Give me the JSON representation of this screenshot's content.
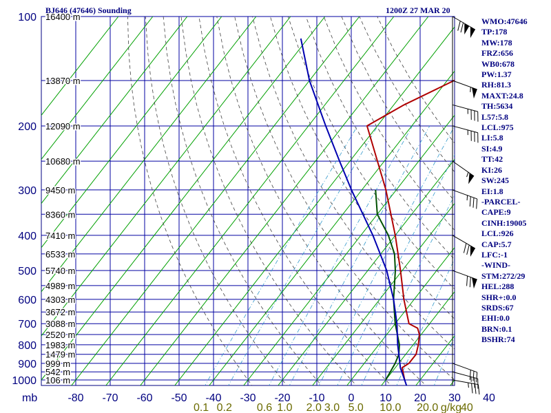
{
  "header": {
    "station": "BJ646 (47646) Sounding",
    "time": "1200Z 27 MAR 20"
  },
  "indices": [
    "WMO:47646",
    "TP:178",
    "MW:178",
    "FRZ:656",
    "WB0:678",
    "PW:1.37",
    "RH:81.3",
    "MAXT:24.8",
    "TH:5634",
    "L57:5.8",
    "LCL:975",
    "LI:5.8",
    "SI:4.9",
    "TT:42",
    "KI:26",
    "SW:245",
    "EI:1.8",
    "-PARCEL-",
    "CAPE:9",
    "CINH:19005",
    "LCL:926",
    "CAP:5.7",
    "LFC:-1",
    "-WIND-",
    "STM:272/29",
    "HEL:288",
    "SHR+:0.0",
    "SRDS:67",
    "EHI:0.0",
    "BRN:0.1",
    "BSHR:74"
  ],
  "colors": {
    "frame": "#000080",
    "grid": "#0000a0",
    "isotherm": "#00a000",
    "dry_adiabat": "#404040",
    "mixing_ratio": "#3399cc",
    "temperature": "#b00000",
    "dewpoint": "#005000",
    "parcel": "#0000b0",
    "mixing_label": "#6b6b00",
    "axis_text": "#000080"
  },
  "chart_data": {
    "type": "line",
    "title": "BJ646 (47646) Sounding",
    "xlabel": "",
    "ylabel": "mb",
    "x_ticks": [
      -80,
      -70,
      -60,
      -50,
      -40,
      -30,
      -20,
      -10,
      0,
      10,
      20,
      30,
      40
    ],
    "x_tick_labels": [
      "-80",
      "-70",
      "-60",
      "-50",
      "-40",
      "-30",
      "-20",
      "-10",
      "0",
      "10",
      "20",
      "30",
      "40"
    ],
    "pressure_ticks": [
      100,
      200,
      300,
      400,
      500,
      600,
      700,
      800,
      900,
      1000
    ],
    "mb_label": "mb",
    "height_labels": [
      {
        "p": 100,
        "text": "16400 m"
      },
      {
        "p": 150,
        "text": "13870 m"
      },
      {
        "p": 200,
        "text": "12090 m"
      },
      {
        "p": 250,
        "text": "10680 m"
      },
      {
        "p": 300,
        "text": "9450 m"
      },
      {
        "p": 350,
        "text": "8360 m"
      },
      {
        "p": 400,
        "text": "7410 m"
      },
      {
        "p": 450,
        "text": "6533 m"
      },
      {
        "p": 500,
        "text": "5740 m"
      },
      {
        "p": 550,
        "text": "4989 m"
      },
      {
        "p": 600,
        "text": "4303 m"
      },
      {
        "p": 650,
        "text": "3672 m"
      },
      {
        "p": 700,
        "text": "3088 m"
      },
      {
        "p": 750,
        "text": "2520 m"
      },
      {
        "p": 800,
        "text": "1983 m"
      },
      {
        "p": 850,
        "text": "1479 m"
      },
      {
        "p": 900,
        "text": "999 m"
      },
      {
        "p": 950,
        "text": "542 m"
      },
      {
        "p": 1000,
        "text": "106 m"
      }
    ],
    "mixing_ratio_labels": [
      {
        "w": 0.1,
        "text": "0.1"
      },
      {
        "w": 0.2,
        "text": "0.2"
      },
      {
        "w": 0.6,
        "text": "0.6"
      },
      {
        "w": 1.0,
        "text": "1.0"
      },
      {
        "w": 2.0,
        "text": "2.0"
      },
      {
        "w": 3.0,
        "text": "3.0"
      },
      {
        "w": 5.0,
        "text": "5.0"
      },
      {
        "w": 10.0,
        "text": "10.0"
      },
      {
        "w": 20.0,
        "text": "20.0"
      },
      {
        "w": 40.0,
        "text": "40"
      }
    ],
    "mixing_ratio_unit": "g/kg",
    "series": [
      {
        "type": "temperature",
        "points": [
          {
            "p": 1000,
            "t": 15.5
          },
          {
            "p": 925,
            "t": 12
          },
          {
            "p": 900,
            "t": 13
          },
          {
            "p": 850,
            "t": 13
          },
          {
            "p": 800,
            "t": 11.5
          },
          {
            "p": 750,
            "t": 9.5
          },
          {
            "p": 720,
            "t": 7.5
          },
          {
            "p": 700,
            "t": 4
          },
          {
            "p": 600,
            "t": -3
          },
          {
            "p": 500,
            "t": -10.5
          },
          {
            "p": 400,
            "t": -20
          },
          {
            "p": 300,
            "t": -33
          },
          {
            "p": 250,
            "t": -42
          },
          {
            "p": 200,
            "t": -53
          },
          {
            "p": 175,
            "t": -47
          },
          {
            "p": 150,
            "t": -38
          },
          {
            "p": 130,
            "t": -32
          },
          {
            "p": 100,
            "t": -47
          }
        ]
      },
      {
        "type": "dewpoint",
        "points": [
          {
            "p": 1000,
            "t": 10
          },
          {
            "p": 900,
            "t": 9
          },
          {
            "p": 850,
            "t": 8
          },
          {
            "p": 800,
            "t": 6
          },
          {
            "p": 700,
            "t": 0
          },
          {
            "p": 600,
            "t": -6
          },
          {
            "p": 500,
            "t": -12
          },
          {
            "p": 450,
            "t": -16
          },
          {
            "p": 400,
            "t": -22
          },
          {
            "p": 350,
            "t": -30
          },
          {
            "p": 300,
            "t": -36
          }
        ]
      },
      {
        "type": "parcel",
        "points": [
          {
            "p": 1050,
            "t": 18
          },
          {
            "p": 1000,
            "t": 15.5
          },
          {
            "p": 926,
            "t": 11.5
          },
          {
            "p": 850,
            "t": 8
          },
          {
            "p": 800,
            "t": 5.5
          },
          {
            "p": 700,
            "t": 0.5
          },
          {
            "p": 600,
            "t": -6
          },
          {
            "p": 500,
            "t": -14.5
          },
          {
            "p": 400,
            "t": -26.5
          },
          {
            "p": 300,
            "t": -43
          },
          {
            "p": 250,
            "t": -53
          },
          {
            "p": 200,
            "t": -65
          },
          {
            "p": 150,
            "t": -80
          },
          {
            "p": 115,
            "t": -92
          }
        ]
      }
    ],
    "wind_barbs": [
      {
        "p": 100,
        "dir": 300,
        "spd": 120
      },
      {
        "p": 150,
        "dir": 290,
        "spd": 55
      },
      {
        "p": 175,
        "dir": 285,
        "spd": 35
      },
      {
        "p": 200,
        "dir": 285,
        "spd": 35
      },
      {
        "p": 250,
        "dir": 305,
        "spd": 55
      },
      {
        "p": 300,
        "dir": 290,
        "spd": 35
      },
      {
        "p": 400,
        "dir": 300,
        "spd": 70
      },
      {
        "p": 500,
        "dir": 290,
        "spd": 70
      },
      {
        "p": 900,
        "dir": 290,
        "spd": 30
      },
      {
        "p": 950,
        "dir": 285,
        "spd": 25
      },
      {
        "p": 1000,
        "dir": 280,
        "spd": 35
      }
    ],
    "ylim": [
      100,
      1050
    ],
    "xlim": [
      -80,
      40
    ],
    "y_scale": "log",
    "skew": true,
    "grid": true
  }
}
